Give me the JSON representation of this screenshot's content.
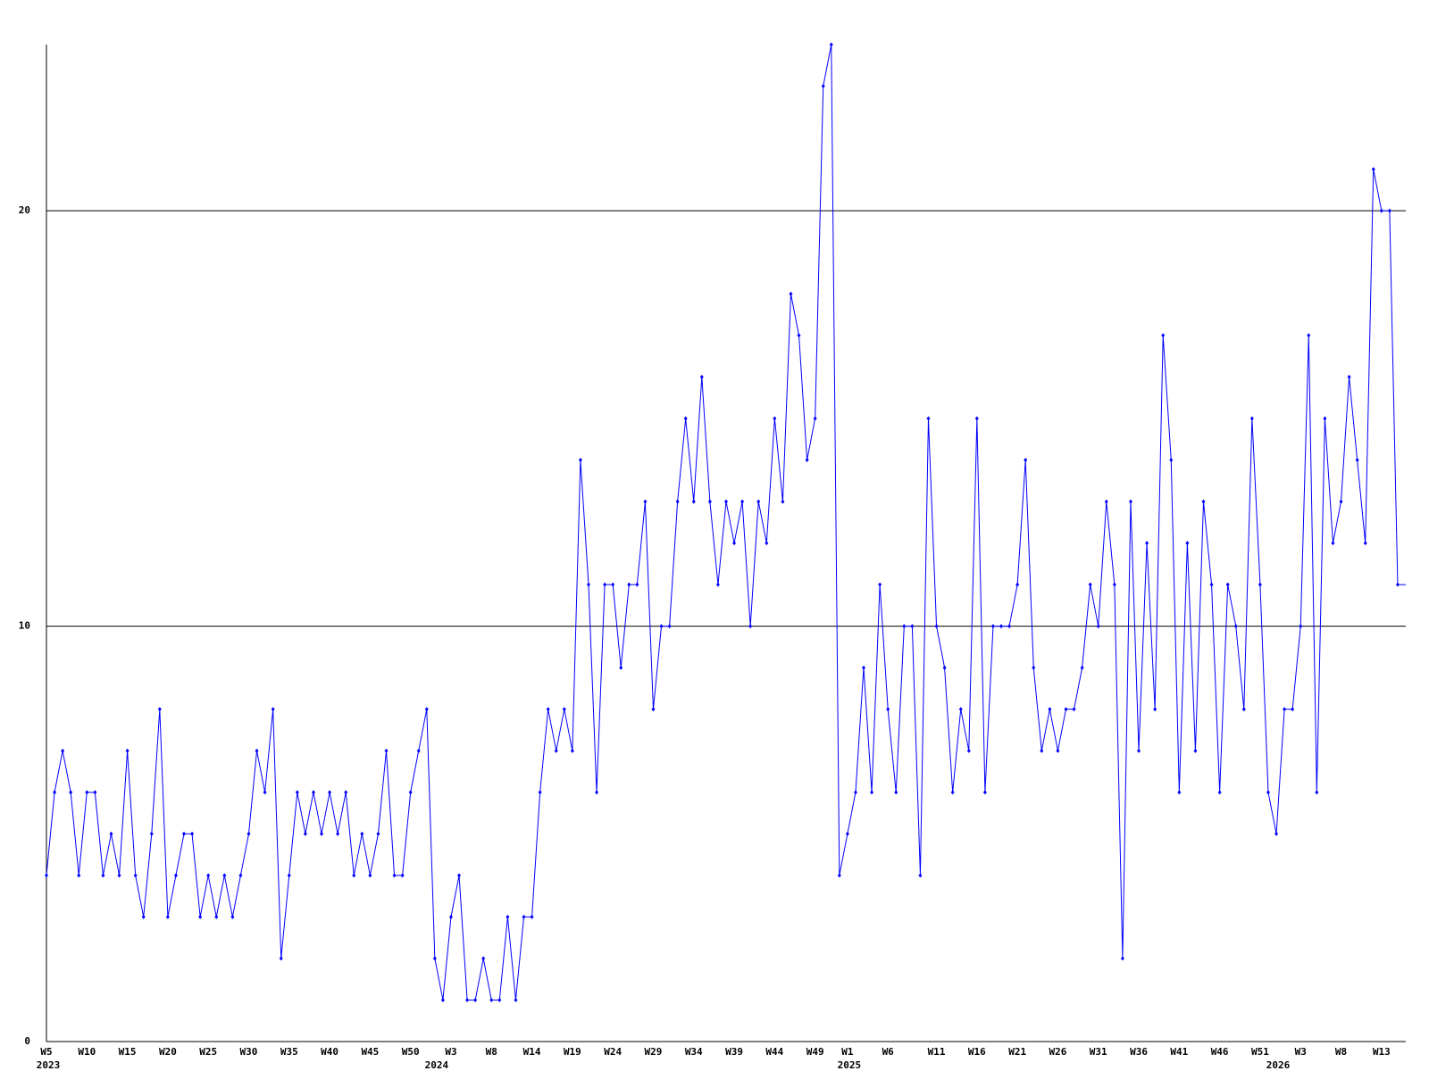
{
  "chart_data": {
    "type": "line",
    "categories": [
      "W5",
      null,
      null,
      null,
      null,
      "W10",
      null,
      null,
      null,
      null,
      "W15",
      null,
      null,
      null,
      null,
      "W20",
      null,
      null,
      null,
      null,
      "W25",
      null,
      null,
      null,
      null,
      "W30",
      null,
      null,
      null,
      null,
      "W35",
      null,
      null,
      null,
      null,
      "W40",
      null,
      null,
      null,
      null,
      "W45",
      null,
      null,
      null,
      null,
      "W50",
      null,
      null,
      null,
      null,
      "W3",
      null,
      null,
      null,
      null,
      "W8",
      null,
      null,
      null,
      null,
      "W14",
      null,
      null,
      null,
      null,
      "W19",
      null,
      null,
      null,
      null,
      "W24",
      null,
      null,
      null,
      null,
      "W29",
      null,
      null,
      null,
      null,
      "W34",
      null,
      null,
      null,
      null,
      "W39",
      null,
      null,
      null,
      null,
      "W44",
      null,
      null,
      null,
      null,
      "W49",
      null,
      null,
      null,
      "W1",
      null,
      null,
      null,
      null,
      "W6",
      null,
      null,
      null,
      null,
      null,
      "W11",
      null,
      null,
      null,
      null,
      "W16",
      null,
      null,
      null,
      null,
      "W21",
      null,
      null,
      null,
      null,
      "W26",
      null,
      null,
      null,
      null,
      "W31",
      null,
      null,
      null,
      null,
      "W36",
      null,
      null,
      null,
      null,
      "W41",
      null,
      null,
      null,
      null,
      "W46",
      null,
      null,
      null,
      null,
      "W51",
      null,
      null,
      null,
      null,
      "W3",
      null,
      null,
      null,
      null,
      "W8",
      null,
      null,
      null,
      null,
      "W13",
      null,
      null
    ],
    "category_years": [
      "2023",
      null,
      null,
      null,
      null,
      null,
      null,
      null,
      null,
      null,
      null,
      null,
      null,
      null,
      null,
      null,
      null,
      null,
      null,
      null,
      null,
      null,
      null,
      null,
      null,
      null,
      null,
      null,
      null,
      null,
      null,
      null,
      null,
      null,
      null,
      null,
      null,
      null,
      null,
      null,
      null,
      null,
      null,
      null,
      null,
      null,
      null,
      null,
      "2024",
      null,
      null,
      null,
      null,
      null,
      null,
      null,
      null,
      null,
      null,
      null,
      null,
      null,
      null,
      null,
      null,
      null,
      null,
      null,
      null,
      null,
      null,
      null,
      null,
      null,
      null,
      null,
      null,
      null,
      null,
      null,
      null,
      null,
      null,
      null,
      null,
      null,
      null,
      null,
      null,
      null,
      null,
      null,
      null,
      null,
      null,
      null,
      null,
      null,
      null,
      "2025",
      null,
      null,
      null,
      null,
      null,
      null,
      null,
      null,
      null,
      null,
      null,
      null,
      null,
      null,
      null,
      null,
      null,
      null,
      null,
      null,
      null,
      null,
      null,
      null,
      null,
      null,
      null,
      null,
      null,
      null,
      null,
      null,
      null,
      null,
      null,
      null,
      null,
      null,
      null,
      null,
      null,
      null,
      null,
      null,
      null,
      null,
      null,
      null,
      null,
      null,
      null,
      null,
      "2026",
      null,
      null,
      null,
      null,
      null,
      null,
      null,
      null,
      null,
      null,
      null,
      null,
      null,
      null,
      null
    ],
    "values": [
      4,
      6,
      7,
      6,
      4,
      6,
      6,
      4,
      5,
      4,
      7,
      4,
      3,
      5,
      8,
      3,
      4,
      5,
      5,
      3,
      4,
      3,
      4,
      3,
      4,
      5,
      7,
      6,
      8,
      2,
      4,
      6,
      5,
      6,
      5,
      6,
      5,
      6,
      4,
      5,
      4,
      5,
      7,
      4,
      4,
      6,
      7,
      8,
      2,
      1,
      3,
      4,
      1,
      1,
      2,
      1,
      1,
      3,
      1,
      3,
      3,
      6,
      8,
      7,
      8,
      7,
      14,
      11,
      6,
      11,
      11,
      9,
      11,
      11,
      13,
      8,
      10,
      10,
      13,
      15,
      13,
      16,
      13,
      11,
      13,
      12,
      13,
      10,
      13,
      12,
      15,
      13,
      18,
      17,
      14,
      15,
      23,
      24,
      4,
      5,
      6,
      9,
      6,
      11,
      8,
      6,
      10,
      10,
      4,
      15,
      10,
      9,
      6,
      8,
      7,
      15,
      6,
      10,
      10,
      10,
      11,
      14,
      9,
      7,
      8,
      7,
      8,
      8,
      9,
      11,
      10,
      13,
      11,
      2,
      13,
      7,
      12,
      8,
      17,
      14,
      6,
      12,
      7,
      13,
      11,
      6,
      11,
      10,
      8,
      15,
      11,
      6,
      5,
      8,
      8,
      10,
      17,
      6,
      15,
      12,
      13,
      16,
      14,
      12,
      21,
      20,
      20,
      11
    ],
    "color": "#0000ff",
    "ylim": [
      0,
      24
    ],
    "yticks": [
      0,
      10,
      20
    ],
    "grid": true
  }
}
